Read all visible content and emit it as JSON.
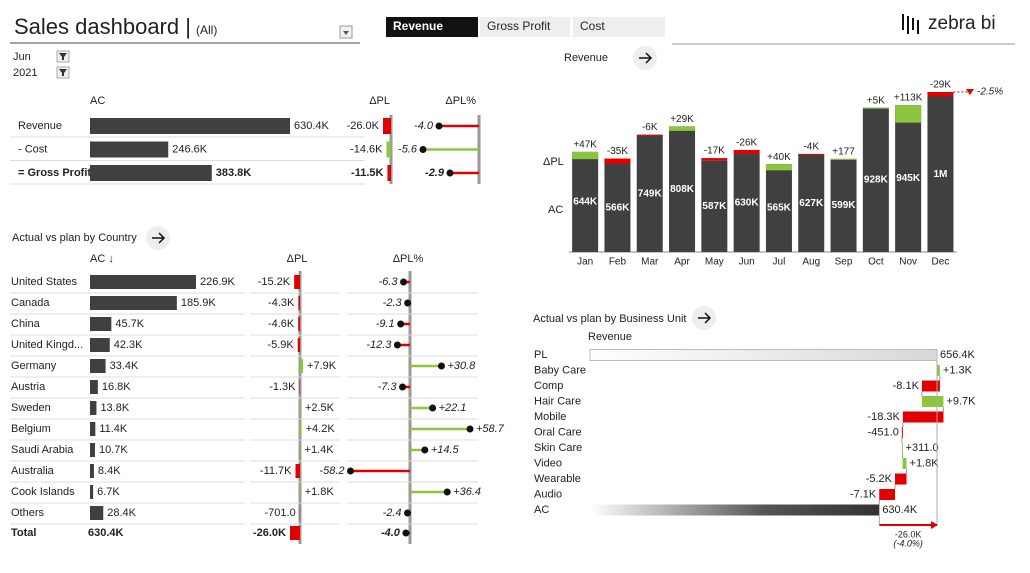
{
  "header": {
    "title": "Sales dashboard |",
    "filter": "(All)",
    "logo": "zebra bi"
  },
  "filters": [
    "Jun",
    "2021"
  ],
  "tabs": [
    "Revenue",
    "Gross Profit",
    "Cost"
  ],
  "chart_data": [
    {
      "type": "variance-table",
      "categories": [
        "Revenue",
        "- Cost",
        "= Gross Profit"
      ],
      "series": [
        {
          "name": "AC",
          "color": "#404040",
          "values": [
            630400,
            246600,
            383800
          ],
          "value_labels": [
            "630.4K",
            "246.6K",
            "383.8K"
          ]
        },
        {
          "name": "ΔPL",
          "colors": [
            "#e00000",
            "#8cc63f",
            "#e00000"
          ],
          "values": [
            -26000,
            -14600,
            -11500
          ],
          "value_labels": [
            "-26.0K",
            "-14.6K",
            "-11.5K"
          ]
        },
        {
          "name": "ΔPL%",
          "colors": [
            "#e00000",
            "#8cc63f",
            "#e00000"
          ],
          "values": [
            -4.0,
            -5.6,
            -2.9
          ],
          "value_labels": [
            "-4.0",
            "-5.6",
            "-2.9"
          ]
        }
      ]
    },
    {
      "type": "variance-table",
      "title": "Actual vs plan by Country",
      "categories": [
        "United States",
        "Canada",
        "China",
        "United Kingd...",
        "Germany",
        "Austria",
        "Sweden",
        "Belgium",
        "Saudi Arabia",
        "Australia",
        "Cook Islands",
        "Others"
      ],
      "positive_color": "#8cc63f",
      "negative_color": "#e00000",
      "series": [
        {
          "name": "AC ↓",
          "color": "#404040",
          "values": [
            226900,
            185900,
            45700,
            42300,
            33400,
            16800,
            13800,
            11400,
            10700,
            8400,
            6700,
            28400
          ],
          "value_labels": [
            "226.9K",
            "185.9K",
            "45.7K",
            "42.3K",
            "33.4K",
            "16.8K",
            "13.8K",
            "11.4K",
            "10.7K",
            "8.4K",
            "6.7K",
            "28.4K"
          ]
        },
        {
          "name": "ΔPL",
          "values": [
            -15200,
            -4300,
            -4600,
            -5900,
            7900,
            -1300,
            2500,
            4200,
            1400,
            -11700,
            1800,
            -701
          ],
          "value_labels": [
            "-15.2K",
            "-4.3K",
            "-4.6K",
            "-5.9K",
            "+7.9K",
            "-1.3K",
            "+2.5K",
            "+4.2K",
            "+1.4K",
            "-11.7K",
            "+1.8K",
            "-701.0"
          ]
        },
        {
          "name": "ΔPL%",
          "values": [
            -6.3,
            -2.3,
            -9.1,
            -12.3,
            30.8,
            -7.3,
            22.1,
            58.7,
            14.5,
            -58.2,
            36.4,
            -2.4
          ],
          "value_labels": [
            "-6.3",
            "-2.3",
            "-9.1",
            "-12.3",
            "+30.8",
            "-7.3",
            "+22.1",
            "+58.7",
            "+14.5",
            "-58.2",
            "+36.4",
            "-2.4"
          ]
        }
      ],
      "total": {
        "label": "Total",
        "values": [
          630400,
          -26000,
          -4.0
        ],
        "value_labels": [
          "630.4K",
          "-26.0K",
          "-4.0"
        ]
      }
    },
    {
      "type": "column-variance",
      "title": "Revenue",
      "categories": [
        "Jan",
        "Feb",
        "Mar",
        "Apr",
        "May",
        "Jun",
        "Jul",
        "Aug",
        "Sep",
        "Oct",
        "Nov",
        "Dec"
      ],
      "positive_color": "#8cc63f",
      "negative_color": "#e00000",
      "series": [
        {
          "name": "AC",
          "color": "#404040",
          "values": [
            644000,
            566000,
            749000,
            808000,
            587000,
            630000,
            565000,
            627000,
            599000,
            928000,
            945000,
            1000000
          ],
          "value_labels": [
            "644K",
            "566K",
            "749K",
            "808K",
            "587K",
            "630K",
            "565K",
            "627K",
            "599K",
            "928K",
            "945K",
            "1M"
          ]
        },
        {
          "name": "ΔPL",
          "values": [
            47000,
            -35000,
            -6000,
            29000,
            -17000,
            -26000,
            40000,
            -4000,
            177,
            5000,
            113000,
            -29000
          ],
          "value_labels": [
            "+47K",
            "-35K",
            "-6K",
            "+29K",
            "-17K",
            "-26K",
            "+40K",
            "-4K",
            "+177",
            "+5K",
            "+113K",
            "-29K"
          ]
        }
      ],
      "annotation": "-2.5%"
    },
    {
      "type": "waterfall-h",
      "title": "Actual vs plan by Business Unit",
      "subtitle": "Revenue",
      "categories": [
        "PL",
        "Baby Care",
        "Comp",
        "Hair Care",
        "Mobile",
        "Oral Care",
        "Skin Care",
        "Video",
        "Wearable",
        "Audio",
        "AC"
      ],
      "values": [
        656400,
        1300,
        -8100,
        9700,
        -18300,
        -451,
        311,
        1800,
        -5200,
        -7100,
        630400
      ],
      "value_labels": [
        "656.4K",
        "+1.3K",
        "-8.1K",
        "+9.7K",
        "-18.3K",
        "-451.0",
        "+311.0",
        "+1.8K",
        "-5.2K",
        "-7.1K",
        "630.4K"
      ],
      "xlim": [
        500000,
        660000
      ],
      "positive_color": "#8cc63f",
      "negative_color": "#e00000",
      "total_variance": {
        "value": -26000,
        "label": "-26.0K"
      },
      "total_variance_pct": {
        "value": -4.0,
        "label": "(-4.0%)"
      }
    }
  ]
}
